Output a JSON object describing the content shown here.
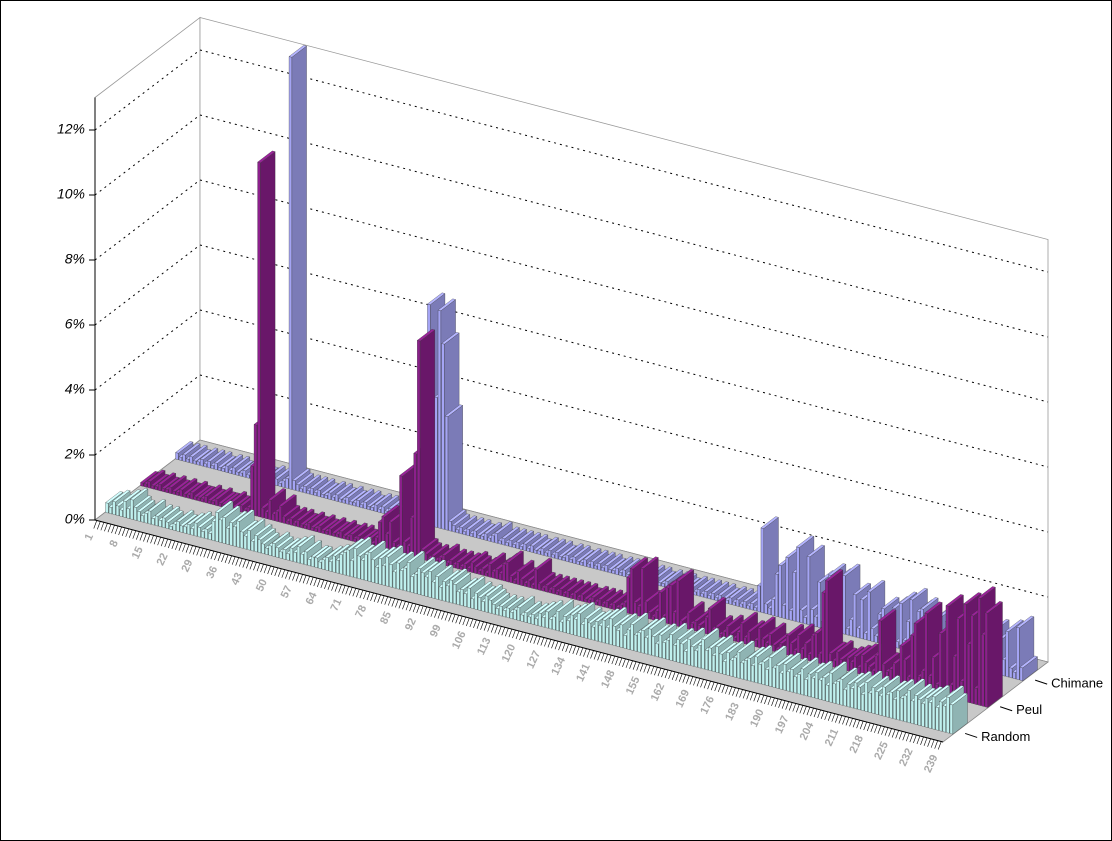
{
  "chart_data": {
    "type": "bar3d",
    "categories": [
      1,
      null,
      null,
      null,
      null,
      null,
      null,
      8,
      null,
      null,
      null,
      null,
      null,
      null,
      15,
      null,
      null,
      null,
      null,
      null,
      null,
      22,
      null,
      null,
      null,
      null,
      null,
      null,
      29,
      null,
      null,
      null,
      null,
      null,
      null,
      36,
      null,
      null,
      null,
      null,
      null,
      null,
      43,
      null,
      null,
      null,
      null,
      null,
      null,
      50,
      null,
      null,
      null,
      null,
      null,
      null,
      57,
      null,
      null,
      null,
      null,
      null,
      null,
      64,
      null,
      null,
      null,
      null,
      null,
      null,
      71,
      null,
      null,
      null,
      null,
      null,
      null,
      78,
      null,
      null,
      null,
      null,
      null,
      null,
      85,
      null,
      null,
      null,
      null,
      null,
      null,
      92,
      null,
      null,
      null,
      null,
      null,
      null,
      99,
      null,
      null,
      null,
      null,
      null,
      null,
      106,
      null,
      null,
      null,
      null,
      null,
      null,
      113,
      null,
      null,
      null,
      null,
      null,
      null,
      120,
      null,
      null,
      null,
      null,
      null,
      null,
      127,
      null,
      null,
      null,
      null,
      null,
      null,
      134,
      null,
      null,
      null,
      null,
      null,
      null,
      141,
      null,
      null,
      null,
      null,
      null,
      null,
      148,
      null,
      null,
      null,
      null,
      null,
      null,
      155,
      null,
      null,
      null,
      null,
      null,
      null,
      162,
      null,
      null,
      null,
      null,
      null,
      null,
      169,
      null,
      null,
      null,
      null,
      null,
      null,
      176,
      null,
      null,
      null,
      null,
      null,
      null,
      183,
      null,
      null,
      null,
      null,
      null,
      null,
      190,
      null,
      null,
      null,
      null,
      null,
      null,
      197,
      null,
      null,
      null,
      null,
      null,
      null,
      204,
      null,
      null,
      null,
      null,
      null,
      null,
      211,
      null,
      null,
      null,
      null,
      null,
      null,
      218,
      null,
      null,
      null,
      null,
      null,
      null,
      225,
      null,
      null,
      null,
      null,
      null,
      null,
      232,
      null,
      null,
      null,
      null,
      null,
      null,
      239
    ],
    "series": [
      {
        "name": "Chimane",
        "color": "#a4a4f4",
        "values": [
          0.2,
          0.1,
          0.2,
          0.1,
          0.2,
          0.1,
          0.1,
          0.2,
          0.1,
          0.2,
          0.1,
          0.2,
          0.1,
          0.1,
          0.2,
          0.1,
          0.2,
          0.1,
          0.1,
          0.2,
          0.1,
          0.2,
          0.1,
          0.2,
          0.1,
          0.1,
          0.2,
          0.1,
          0.2,
          0.1,
          0.2,
          0.3,
          13.3,
          0.3,
          0.2,
          0.1,
          0.2,
          0.1,
          0.2,
          0.1,
          0.2,
          0.1,
          0.1,
          0.2,
          0.1,
          0.2,
          0.1,
          0.1,
          0.2,
          0.1,
          0.1,
          0.2,
          0.1,
          0.2,
          0.1,
          0.1,
          0.2,
          0.1,
          0.2,
          0.1,
          0.2,
          0.1,
          0.2,
          0.1,
          0.2,
          0.4,
          0.3,
          0.2,
          0.5,
          0.3,
          3.2,
          6.8,
          0.4,
          4.0,
          6.7,
          5.7,
          3.5,
          0.3,
          0.2,
          0.1,
          0.2,
          0.1,
          0.2,
          0.1,
          0.2,
          0.1,
          0.1,
          0.2,
          0.1,
          0.2,
          0.3,
          0.1,
          0.2,
          0.1,
          0.2,
          0.1,
          0.2,
          0.1,
          0.2,
          0.1,
          0.2,
          0.1,
          0.1,
          0.2,
          0.1,
          0.2,
          0.1,
          0.2,
          0.1,
          0.1,
          0.2,
          0.1,
          0.2,
          0.1,
          0.1,
          0.2,
          0.1,
          0.2,
          0.1,
          0.2,
          0.1,
          0.2,
          0.1,
          0.1,
          0.2,
          0.1,
          0.2,
          0.1,
          0.2,
          0.1,
          0.1,
          0.2,
          0.1,
          0.2,
          0.1,
          0.2,
          0.1,
          0.1,
          0.2,
          0.1,
          0.2,
          0.1,
          0.2,
          0.1,
          0.1,
          0.2,
          0.1,
          0.2,
          0.1,
          0.2,
          0.1,
          0.2,
          0.1,
          0.2,
          0.1,
          0.1,
          0.2,
          0.1,
          0.2,
          0.1,
          0.2,
          0.1,
          0.2,
          0.1,
          0.8,
          2.6,
          0.3,
          0.2,
          0.5,
          1.3,
          1.6,
          0.4,
          1.9,
          0.3,
          1.5,
          2.3,
          0.4,
          0.2,
          2.1,
          0.5,
          0.3,
          1.4,
          0.2,
          0.6,
          1.7,
          0.3,
          1.6,
          0.4,
          1.8,
          0.2,
          0.5,
          1.3,
          0.3,
          1.2,
          0.2,
          1.5,
          0.4,
          0.2,
          0.9,
          1.1,
          0.3,
          0.6,
          1.2,
          0.2,
          1.4,
          0.3,
          0.9,
          1.6,
          0.2,
          1.3,
          1.4,
          0.4,
          0.2,
          1.1,
          0.3,
          1.3,
          0.5,
          1.2,
          0.2,
          0.9,
          0.4,
          1.4,
          0.3,
          1.0,
          0.2,
          1.2,
          0.6,
          0.3,
          1.5,
          0.4,
          1.3,
          0.2,
          1.1,
          0.5,
          1.4,
          0.3,
          0.2,
          1.6,
          0.4
        ]
      },
      {
        "name": "Peul",
        "color": "#8c1f8c",
        "values": [
          0.1,
          0.1,
          0.2,
          0.1,
          0.1,
          0.2,
          0.1,
          0.1,
          0.2,
          0.1,
          0.1,
          0.2,
          0.1,
          0.1,
          0.2,
          0.1,
          0.1,
          0.1,
          0.2,
          0.1,
          0.1,
          0.2,
          0.1,
          0.1,
          0.1,
          0.2,
          0.1,
          0.1,
          0.2,
          0.1,
          0.2,
          1.5,
          2.8,
          10.9,
          0.3,
          0.2,
          0.6,
          0.2,
          0.3,
          0.5,
          0.2,
          0.1,
          0.2,
          0.1,
          0.2,
          0.1,
          0.1,
          0.2,
          0.1,
          0.1,
          0.2,
          0.1,
          0.1,
          0.2,
          0.1,
          0.1,
          0.2,
          0.1,
          0.1,
          0.2,
          0.1,
          0.2,
          0.1,
          0.1,
          0.2,
          0.1,
          0.3,
          0.8,
          1.0,
          0.5,
          0.9,
          0.3,
          0.2,
          2.4,
          0.4,
          0.3,
          1.2,
          3.2,
          6.7,
          0.3,
          0.2,
          0.1,
          0.2,
          0.1,
          0.2,
          0.3,
          0.1,
          0.2,
          0.1,
          0.2,
          0.1,
          0.2,
          0.1,
          0.3,
          0.2,
          0.1,
          0.2,
          0.1,
          0.4,
          0.2,
          0.3,
          0.2,
          0.5,
          0.6,
          0.2,
          0.1,
          0.4,
          0.2,
          0.1,
          0.2,
          0.1,
          0.6,
          0.2,
          0.1,
          0.2,
          0.1,
          0.2,
          0.1,
          0.2,
          0.1,
          0.2,
          0.1,
          0.2,
          0.1,
          0.2,
          0.1,
          0.1,
          0.2,
          0.1,
          0.2,
          0.1,
          0.2,
          0.1,
          0.2,
          0.1,
          0.2,
          0.3,
          1.1,
          1.4,
          0.4,
          0.3,
          1.5,
          0.5,
          0.2,
          0.1,
          0.3,
          0.9,
          0.2,
          1.1,
          1.2,
          0.4,
          1.4,
          0.2,
          0.1,
          0.5,
          0.2,
          0.3,
          0.2,
          0.1,
          0.5,
          0.8,
          0.2,
          0.3,
          0.1,
          0.2,
          0.4,
          0.2,
          0.1,
          0.3,
          0.6,
          0.2,
          0.4,
          0.1,
          0.2,
          0.6,
          0.3,
          0.2,
          0.5,
          0.2,
          0.1,
          0.3,
          0.2,
          0.6,
          0.4,
          0.2,
          0.7,
          0.3,
          0.5,
          0.2,
          0.8,
          0.9,
          0.3,
          2.2,
          2.6,
          0.4,
          0.2,
          0.5,
          0.3,
          0.2,
          0.4,
          0.3,
          0.5,
          0.2,
          0.6,
          0.4,
          0.3,
          0.2,
          0.7,
          1.8,
          0.5,
          0.3,
          0.4,
          0.6,
          0.2,
          1.2,
          0.8,
          0.3,
          1.6,
          2.0,
          0.4,
          0.6,
          2.4,
          0.5,
          1.1,
          0.3,
          1.9,
          0.2,
          2.8,
          0.4,
          1.3,
          2.5,
          0.6,
          3.0,
          1.8,
          2.7,
          0.5,
          3.3,
          2.2,
          2.9
        ]
      },
      {
        "name": "Random",
        "color": "#bff0ee",
        "values": [
          0.3,
          0.2,
          0.4,
          0.3,
          0.2,
          0.5,
          0.3,
          0.6,
          0.4,
          0.3,
          0.2,
          0.3,
          0.4,
          0.2,
          0.3,
          0.2,
          0.3,
          0.2,
          0.1,
          0.2,
          0.3,
          0.2,
          0.2,
          0.3,
          0.2,
          0.4,
          0.3,
          0.2,
          0.3,
          0.2,
          0.6,
          0.9,
          0.7,
          0.8,
          0.5,
          0.7,
          0.6,
          0.8,
          0.5,
          0.4,
          0.6,
          0.3,
          0.5,
          0.4,
          0.3,
          0.2,
          0.3,
          0.4,
          0.3,
          0.2,
          0.3,
          0.2,
          0.4,
          0.3,
          0.5,
          0.3,
          0.4,
          0.2,
          0.3,
          0.3,
          0.2,
          0.3,
          0.4,
          0.3,
          0.5,
          0.4,
          0.6,
          0.7,
          0.8,
          0.5,
          0.9,
          0.7,
          0.6,
          0.8,
          0.9,
          0.7,
          0.5,
          0.8,
          0.6,
          0.9,
          0.7,
          0.5,
          0.8,
          0.6,
          0.7,
          0.9,
          0.5,
          0.6,
          0.8,
          0.7,
          0.6,
          0.8,
          0.5,
          0.7,
          0.4,
          0.6,
          0.5,
          0.7,
          0.6,
          0.4,
          0.5,
          0.4,
          0.6,
          0.3,
          0.5,
          0.4,
          0.3,
          0.5,
          0.4,
          0.3,
          0.2,
          0.3,
          0.2,
          0.3,
          0.2,
          0.3,
          0.4,
          0.2,
          0.3,
          0.2,
          0.3,
          0.2,
          0.4,
          0.3,
          0.5,
          0.3,
          0.4,
          0.6,
          0.3,
          0.5,
          0.4,
          0.6,
          0.5,
          0.7,
          0.4,
          0.6,
          0.5,
          0.4,
          0.6,
          0.5,
          0.7,
          0.5,
          0.8,
          0.6,
          0.5,
          0.7,
          0.4,
          0.6,
          0.8,
          0.5,
          0.6,
          0.7,
          0.5,
          0.8,
          0.6,
          0.4,
          0.7,
          0.5,
          0.6,
          0.8,
          0.5,
          0.7,
          0.6,
          0.4,
          0.8,
          0.6,
          0.5,
          0.7,
          0.9,
          0.6,
          0.7,
          0.5,
          0.8,
          0.6,
          0.4,
          0.7,
          0.5,
          0.6,
          0.8,
          0.5,
          0.6,
          0.7,
          0.5,
          0.8,
          0.6,
          0.7,
          0.5,
          0.9,
          0.6,
          0.7,
          0.5,
          0.8,
          0.6,
          0.7,
          0.5,
          0.6,
          0.8,
          0.5,
          0.7,
          0.6,
          0.8,
          0.6,
          0.7,
          0.5,
          0.9,
          0.6,
          0.7,
          0.8,
          0.5,
          0.7,
          0.6,
          0.8,
          0.7,
          0.5,
          0.9,
          0.6,
          0.8,
          0.7,
          0.6,
          0.9,
          0.7,
          0.8,
          0.6,
          0.9,
          0.7,
          0.8,
          1.0,
          0.7,
          0.9,
          0.8,
          0.7,
          0.9,
          0.8,
          1.0,
          0.7,
          0.9,
          0.8,
          1.1,
          0.9
        ]
      }
    ],
    "ylim": [
      0,
      13
    ],
    "yticks": [
      {
        "value": 0,
        "label": "0%"
      },
      {
        "value": 2,
        "label": "2%"
      },
      {
        "value": 4,
        "label": "4%"
      },
      {
        "value": 6,
        "label": "6%"
      },
      {
        "value": 8,
        "label": "8%"
      },
      {
        "value": 10,
        "label": "10%"
      },
      {
        "value": 12,
        "label": "12%"
      }
    ],
    "grid": true
  }
}
